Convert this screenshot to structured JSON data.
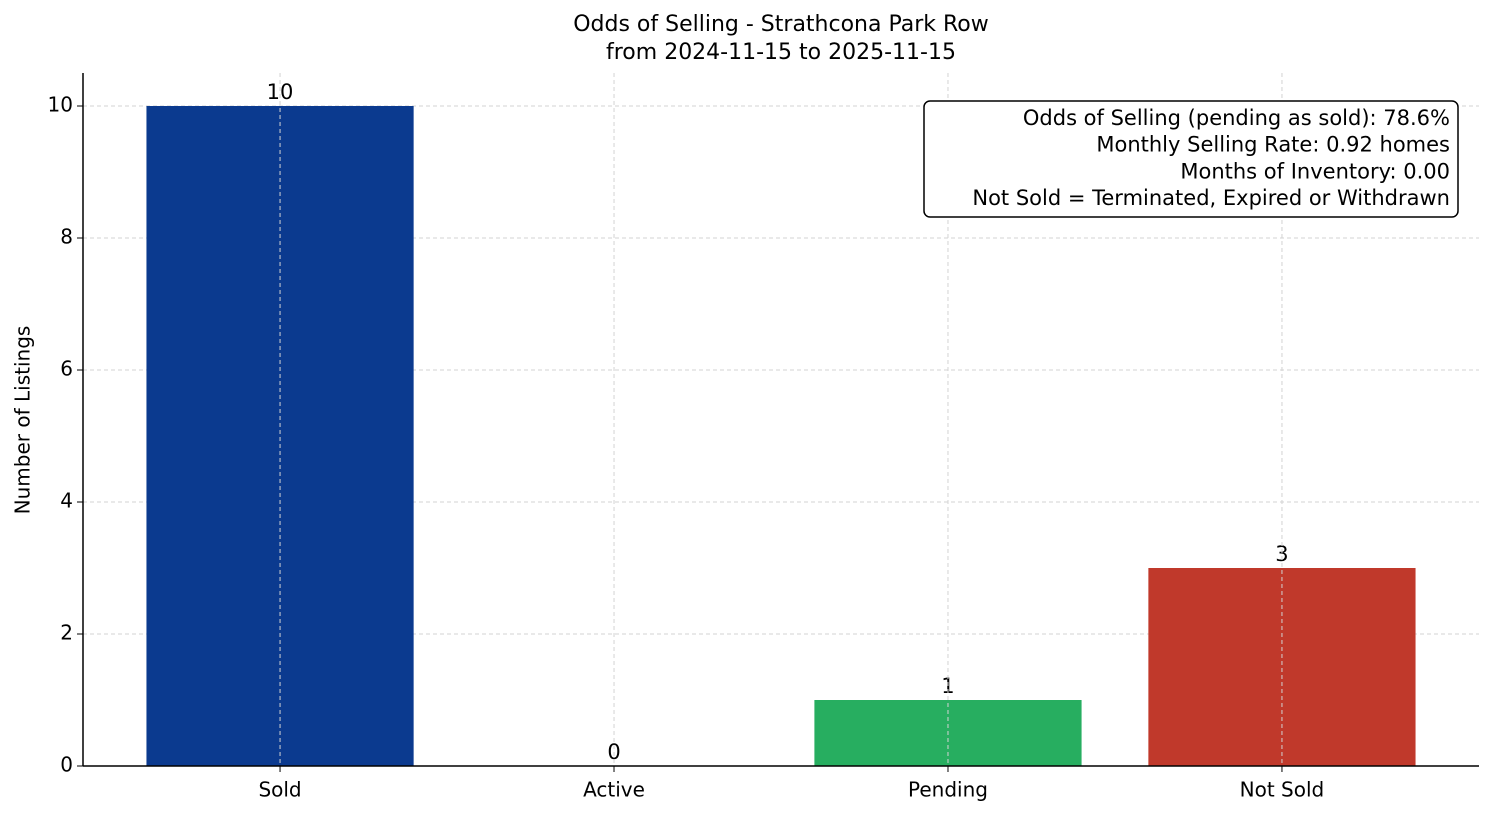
{
  "chart_data": {
    "type": "bar",
    "title": "Odds of Selling - Strathcona Park Row",
    "subtitle": "from 2024-11-15 to 2025-11-15",
    "y_label": "Number of Listings",
    "categories": [
      "Sold",
      "Active",
      "Pending",
      "Not Sold"
    ],
    "values": [
      10,
      0,
      1,
      3
    ],
    "colors": [
      "#0b3a8f",
      "#1f77b4",
      "#27ae60",
      "#c0392b"
    ],
    "ylim": [
      0,
      10.5
    ],
    "yticks": [
      0,
      2,
      4,
      6,
      8,
      10
    ],
    "grid": true,
    "annotations": [
      "Odds of Selling (pending as sold): 78.6%",
      "Monthly Selling Rate: 0.92 homes",
      "Months of Inventory: 0.00",
      "Not Sold = Terminated, Expired or Withdrawn"
    ]
  }
}
